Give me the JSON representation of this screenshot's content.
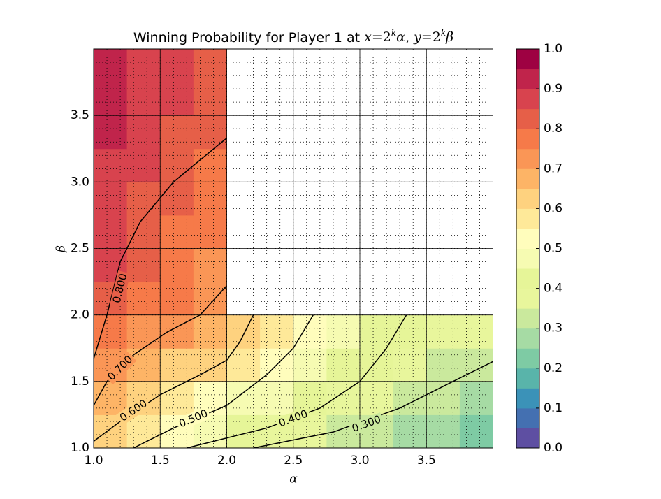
{
  "chart_data": {
    "type": "contourf",
    "title": [
      "Winning Probability for Player 1 at ",
      "x",
      "=2",
      "k",
      "α",
      ", ",
      "y",
      "=2",
      "k",
      "β"
    ],
    "xlabel": "α",
    "ylabel": "β",
    "xlim": [
      1,
      4
    ],
    "ylim": [
      1,
      4
    ],
    "xticks": [
      {
        "value": 1,
        "label": "1.0"
      },
      1.5,
      {
        "value": 2,
        "label": "2.0"
      },
      2.5,
      {
        "value": 3,
        "label": "3.0"
      },
      3.5
    ],
    "yticks": [
      {
        "value": 1,
        "label": "1.0"
      },
      1.5,
      {
        "value": 2,
        "label": "2.0"
      },
      2.5,
      {
        "value": 3,
        "label": "3.0"
      },
      3.5
    ],
    "grid": true,
    "minor_grid_step": 0.1,
    "x": [
      1.125,
      1.375,
      1.625,
      1.875,
      2.125,
      2.375,
      2.625,
      2.875,
      3.125,
      3.375,
      3.625,
      3.875
    ],
    "y": [
      1.125,
      1.375,
      1.625,
      1.875,
      2.125,
      2.375,
      2.625,
      2.875,
      3.125,
      3.375,
      3.625,
      3.875
    ],
    "z": [
      [
        0.62,
        0.56,
        0.5,
        0.46,
        0.42,
        0.39,
        0.36,
        0.33,
        0.3,
        0.28,
        0.26,
        0.24
      ],
      [
        0.68,
        0.63,
        0.58,
        0.53,
        0.49,
        0.45,
        0.42,
        0.39,
        0.36,
        0.33,
        0.31,
        0.29
      ],
      [
        0.74,
        0.69,
        0.64,
        0.6,
        0.55,
        0.5,
        0.46,
        0.43,
        0.4,
        0.37,
        0.34,
        0.32
      ],
      [
        0.79,
        0.74,
        0.7,
        0.66,
        0.61,
        0.56,
        0.51,
        0.47,
        0.43,
        0.4,
        0.37,
        0.35
      ],
      [
        0.83,
        0.79,
        0.75,
        0.71,
        null,
        null,
        null,
        null,
        null,
        null,
        null,
        null
      ],
      [
        0.85,
        0.81,
        0.77,
        0.74,
        null,
        null,
        null,
        null,
        null,
        null,
        null,
        null
      ],
      [
        0.87,
        0.82,
        0.79,
        0.76,
        null,
        null,
        null,
        null,
        null,
        null,
        null,
        null
      ],
      [
        0.88,
        0.84,
        0.81,
        0.78,
        null,
        null,
        null,
        null,
        null,
        null,
        null,
        null
      ],
      [
        0.89,
        0.86,
        0.83,
        0.79,
        null,
        null,
        null,
        null,
        null,
        null,
        null,
        null
      ],
      [
        0.9,
        0.87,
        0.84,
        0.81,
        null,
        null,
        null,
        null,
        null,
        null,
        null,
        null
      ],
      [
        0.91,
        0.88,
        0.85,
        0.82,
        null,
        null,
        null,
        null,
        null,
        null,
        null,
        null
      ],
      [
        0.93,
        0.89,
        0.86,
        0.83,
        null,
        null,
        null,
        null,
        null,
        null,
        null,
        null
      ]
    ],
    "levels": [
      0,
      0.05,
      0.1,
      0.15,
      0.2,
      0.25,
      0.3,
      0.35,
      0.4,
      0.45,
      0.5,
      0.55,
      0.6,
      0.65,
      0.7,
      0.75,
      0.8,
      0.85,
      0.9,
      0.95,
      1
    ],
    "colors": [
      "#5e4fa2",
      "#4470b1",
      "#3b92b8",
      "#59b4aa",
      "#7ecba4",
      "#a6dba4",
      "#cae99d",
      "#e8f69c",
      "#e6f598",
      "#f6fbb2",
      "#fffdbc",
      "#fee999",
      "#fed27f",
      "#fdb466",
      "#fa9656",
      "#f67a49",
      "#e65f48",
      "#d8434e",
      "#c0244b",
      "#9e0142"
    ],
    "colorbar_ticks": [
      {
        "value": 0,
        "label": "0.0"
      },
      0.1,
      0.2,
      0.3,
      0.4,
      0.5,
      0.6,
      0.7,
      0.8,
      0.9,
      {
        "value": 1,
        "label": "1.0"
      }
    ],
    "contours": [
      {
        "level": 0.8,
        "label": "0.800",
        "label_at": [
          1.2,
          2.2
        ],
        "x": [
          1,
          1.1,
          1.2,
          1.35,
          1.6,
          2
        ],
        "y": [
          1.67,
          2.0,
          2.4,
          2.7,
          3.0,
          3.33
        ]
      },
      {
        "level": 0.7,
        "label": "0.700",
        "label_at": [
          1.2,
          1.6
        ],
        "x": [
          1,
          1.1,
          1.3,
          1.55,
          1.8,
          2
        ],
        "y": [
          1.32,
          1.5,
          1.7,
          1.87,
          2.0,
          2.22
        ]
      },
      {
        "level": 0.6,
        "label": "0.600",
        "label_at": [
          1.3,
          1.28
        ],
        "x": [
          1,
          1.2,
          1.5,
          1.8,
          2,
          2.1,
          2.2
        ],
        "y": [
          1.05,
          1.2,
          1.4,
          1.55,
          1.66,
          1.8,
          2.0
        ]
      },
      {
        "level": 0.5,
        "label": "0.500",
        "label_at": [
          1.75,
          1.22
        ],
        "x": [
          1.3,
          1.6,
          2,
          2.3,
          2.5,
          2.65
        ],
        "y": [
          1.0,
          1.15,
          1.32,
          1.55,
          1.75,
          2.0
        ]
      },
      {
        "level": 0.4,
        "label": "0.400",
        "label_at": [
          2.5,
          1.22
        ],
        "x": [
          1.7,
          2.3,
          2.7,
          3.0,
          3.2,
          3.35
        ],
        "y": [
          1.0,
          1.15,
          1.3,
          1.5,
          1.75,
          2.0
        ]
      },
      {
        "level": 0.3,
        "label": "0.300",
        "label_at": [
          3.05,
          1.18
        ],
        "x": [
          2.2,
          2.8,
          3.3,
          3.7,
          4.0
        ],
        "y": [
          1.0,
          1.12,
          1.3,
          1.5,
          1.65
        ]
      }
    ]
  }
}
